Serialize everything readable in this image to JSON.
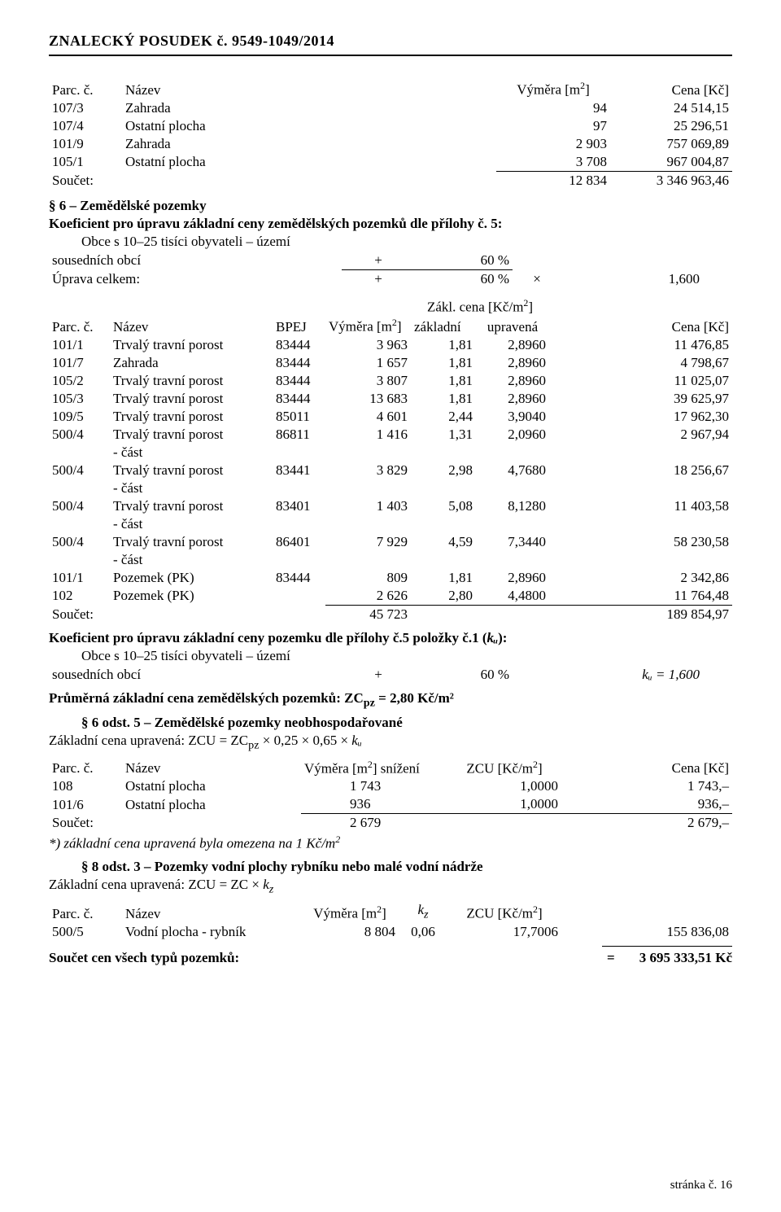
{
  "docHeader": "ZNALECKÝ   POSUDEK č. 9549-1049/2014",
  "table1": {
    "head": {
      "c0": "Parc. č.",
      "c1": "Název",
      "c2": "Výměra [m²]",
      "c3": "Cena [Kč]"
    },
    "rows": [
      {
        "c0": "107/3",
        "c1": "Zahrada",
        "c2": "94",
        "c3": "24 514,15"
      },
      {
        "c0": "107/4",
        "c1": "Ostatní plocha",
        "c2": "97",
        "c3": "25 296,51"
      },
      {
        "c0": "101/9",
        "c1": "Zahrada",
        "c2": "2 903",
        "c3": "757 069,89"
      },
      {
        "c0": "105/1",
        "c1": "Ostatní plocha",
        "c2": "3 708",
        "c3": "967 004,87"
      }
    ],
    "sumLabel": "Součet:",
    "sumArea": "12 834",
    "sumPrice": "3 346 963,46"
  },
  "sec6Title": "§ 6 – Zemědělské pozemky",
  "sec6KoefTitle": "Koeficient pro úpravu základní ceny zemědělských pozemků dle přílohy č. 5:",
  "sec6Line1a": "Obce s 10–25 tisíci obyvateli – území",
  "sec6Line1b": "sousedních obcí",
  "sec6Plus": "+",
  "sec6Pct": "60 %",
  "sec6Uprava": "Úprava celkem:",
  "sec6Mult": "×",
  "sec6Factor": "1,600",
  "table2": {
    "head": {
      "zcLabel": "Zákl. cena [Kč/m²]",
      "c0": "Parc. č.",
      "c1": "Název",
      "c2": "BPEJ",
      "c3": "Výměra [m²]",
      "c4": "základní",
      "c5": "upravená",
      "c6": "Cena [Kč]"
    },
    "rows": [
      {
        "c0": "101/1",
        "c1": "Trvalý travní porost",
        "c2": "83444",
        "c3": "3 963",
        "c4": "1,81",
        "c5": "2,8960",
        "c6": "11 476,85"
      },
      {
        "c0": "101/7",
        "c1": "Zahrada",
        "c2": "83444",
        "c3": "1 657",
        "c4": "1,81",
        "c5": "2,8960",
        "c6": "4 798,67"
      },
      {
        "c0": "105/2",
        "c1": "Trvalý travní porost",
        "c2": "83444",
        "c3": "3 807",
        "c4": "1,81",
        "c5": "2,8960",
        "c6": "11 025,07"
      },
      {
        "c0": "105/3",
        "c1": "Trvalý travní porost",
        "c2": "83444",
        "c3": "13 683",
        "c4": "1,81",
        "c5": "2,8960",
        "c6": "39 625,97"
      },
      {
        "c0": "109/5",
        "c1": "Trvalý travní porost",
        "c2": "85011",
        "c3": "4 601",
        "c4": "2,44",
        "c5": "3,9040",
        "c6": "17 962,30"
      },
      {
        "c0": "500/4",
        "c1": "Trvalý travní porost - část",
        "c2": "86811",
        "c3": "1 416",
        "c4": "1,31",
        "c5": "2,0960",
        "c6": "2 967,94"
      },
      {
        "c0": "500/4",
        "c1": "Trvalý travní porost - část",
        "c2": "83441",
        "c3": "3 829",
        "c4": "2,98",
        "c5": "4,7680",
        "c6": "18 256,67"
      },
      {
        "c0": "500/4",
        "c1": "Trvalý travní porost - část",
        "c2": "83401",
        "c3": "1 403",
        "c4": "5,08",
        "c5": "8,1280",
        "c6": "11 403,58"
      },
      {
        "c0": "500/4",
        "c1": "Trvalý travní porost - část",
        "c2": "86401",
        "c3": "7 929",
        "c4": "4,59",
        "c5": "7,3440",
        "c6": "58 230,58"
      },
      {
        "c0": "101/1",
        "c1": "Pozemek (PK)",
        "c2": "83444",
        "c3": "809",
        "c4": "1,81",
        "c5": "2,8960",
        "c6": "2 342,86"
      },
      {
        "c0": "102",
        "c1": "Pozemek (PK)",
        "c2": "",
        "c3": "2 626",
        "c4": "2,80",
        "c5": "4,4800",
        "c6": "11 764,48"
      }
    ],
    "sumLabel": "Součet:",
    "sumArea": "45 723",
    "sumPrice": "189 854,97"
  },
  "koefKuTitle": "Koeficient pro úpravu základní ceny pozemku dle přílohy č.5 položky č.1 (",
  "koefKuItalic": "kᵤ",
  "koefKuTitle2": "):",
  "koefKuL1": "Obce s 10–25 tisíci obyvateli – území",
  "koefKuL2": "sousedních obcí",
  "koefKuPlus": "+",
  "koefKuPct": "60 %",
  "koefKuEq": "kᵤ = 1,600",
  "avgLine": "Průměrná základní cena zemědělských pozemků: ZCₚ₂ = 2,80 Kč/m²",
  "avgLineBold": "Průměrná základní cena zemědělských pozemků: ZC",
  "avgLineSub": "pz",
  "avgLineRest": " = 2,80 Kč/m²",
  "sec6odst5": "§ 6 odst. 5 – Zemědělské pozemky neobhospodařované",
  "zcuFormula1a": "Základní cena upravená: ZCU = ZC",
  "zcuFormula1sub": "pz",
  "zcuFormula1b": " × 0,25 × 0,65 × ",
  "zcuFormula1it": "kᵤ",
  "table3": {
    "head": {
      "c0": "Parc. č.",
      "c1": "Název",
      "c2": "Výměra [m²] snížení",
      "c3": "ZCU [Kč/m²]",
      "c4": "Cena [Kč]"
    },
    "rows": [
      {
        "c0": "108",
        "c1": "Ostatní plocha",
        "c2": "1 743",
        "c3": "1,0000",
        "c4": "1 743,–"
      },
      {
        "c0": "101/6",
        "c1": "Ostatní plocha",
        "c2": "936",
        "c3": "1,0000",
        "c4": "936,–"
      }
    ],
    "sumLabel": "Součet:",
    "sumArea": "2 679",
    "sumPrice": "2 679,–"
  },
  "footnote": "*) základní cena upravená byla omezena na 1 Kč/m²",
  "sec8Title": "§ 8 odst. 3 – Pozemky vodní plochy rybníku nebo malé vodní nádrže",
  "zcuFormula2a": "Základní cena upravená:     ZCU = ZC × ",
  "zcuFormula2it": "k",
  "zcuFormula2sub": "z",
  "table4": {
    "head": {
      "c0": "Parc. č.",
      "c1": "Název",
      "c2": "Výměra [m²]",
      "c3": "kz",
      "c3it": "k",
      "c3sub": "z",
      "c4": "ZCU [Kč/m²]",
      "c5": "Cena [Kč]"
    },
    "rows": [
      {
        "c0": "500/5",
        "c1": "Vodní plocha - rybník",
        "c2": "8 804",
        "c3": "0,06",
        "c4": "17,7006",
        "c5": "155 836,08"
      }
    ]
  },
  "grandTotalLabel": "Součet cen všech typů pozemků:",
  "grandTotalEq": "=",
  "grandTotalVal": "3 695 333,51 Kč",
  "footer": "stránka č. 16"
}
